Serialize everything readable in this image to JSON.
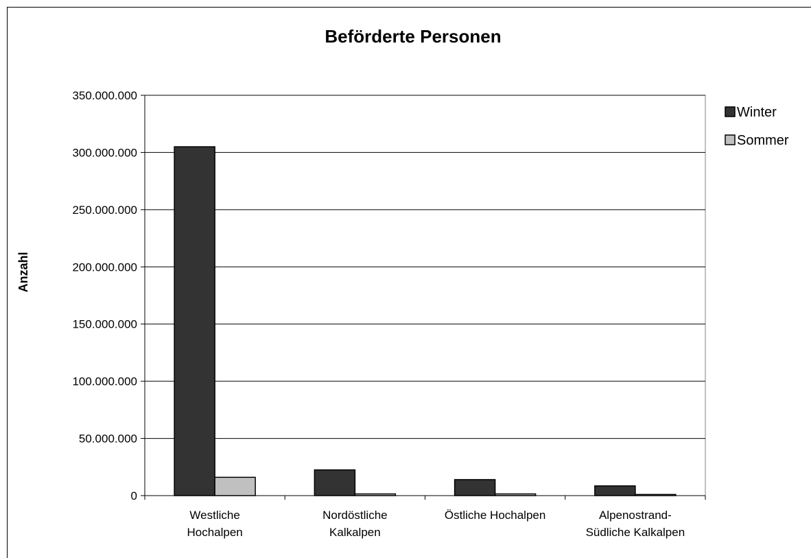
{
  "chart_data": {
    "type": "bar",
    "title": "Beförderte Personen",
    "ylabel": "Anzahl",
    "xlabel": "",
    "ylim": [
      0,
      350000000
    ],
    "yticks": [
      0,
      50000000,
      100000000,
      150000000,
      200000000,
      250000000,
      300000000,
      350000000
    ],
    "ytick_labels": [
      "0",
      "50.000.000",
      "100.000.000",
      "150.000.000",
      "200.000.000",
      "250.000.000",
      "300.000.000",
      "350.000.000"
    ],
    "categories": [
      [
        "Westliche",
        "Hochalpen"
      ],
      [
        "Nordöstliche",
        "Kalkalpen"
      ],
      [
        "Östliche Hochalpen"
      ],
      [
        "Alpenostrand-",
        "Südliche Kalkalpen"
      ]
    ],
    "series": [
      {
        "name": "Winter",
        "color": "#333333",
        "values": [
          305000000,
          22500000,
          14000000,
          8500000
        ]
      },
      {
        "name": "Sommer",
        "color": "#c0c0c0",
        "values": [
          16000000,
          1500000,
          1500000,
          1000000
        ]
      }
    ],
    "grid": true,
    "legend": "right"
  }
}
